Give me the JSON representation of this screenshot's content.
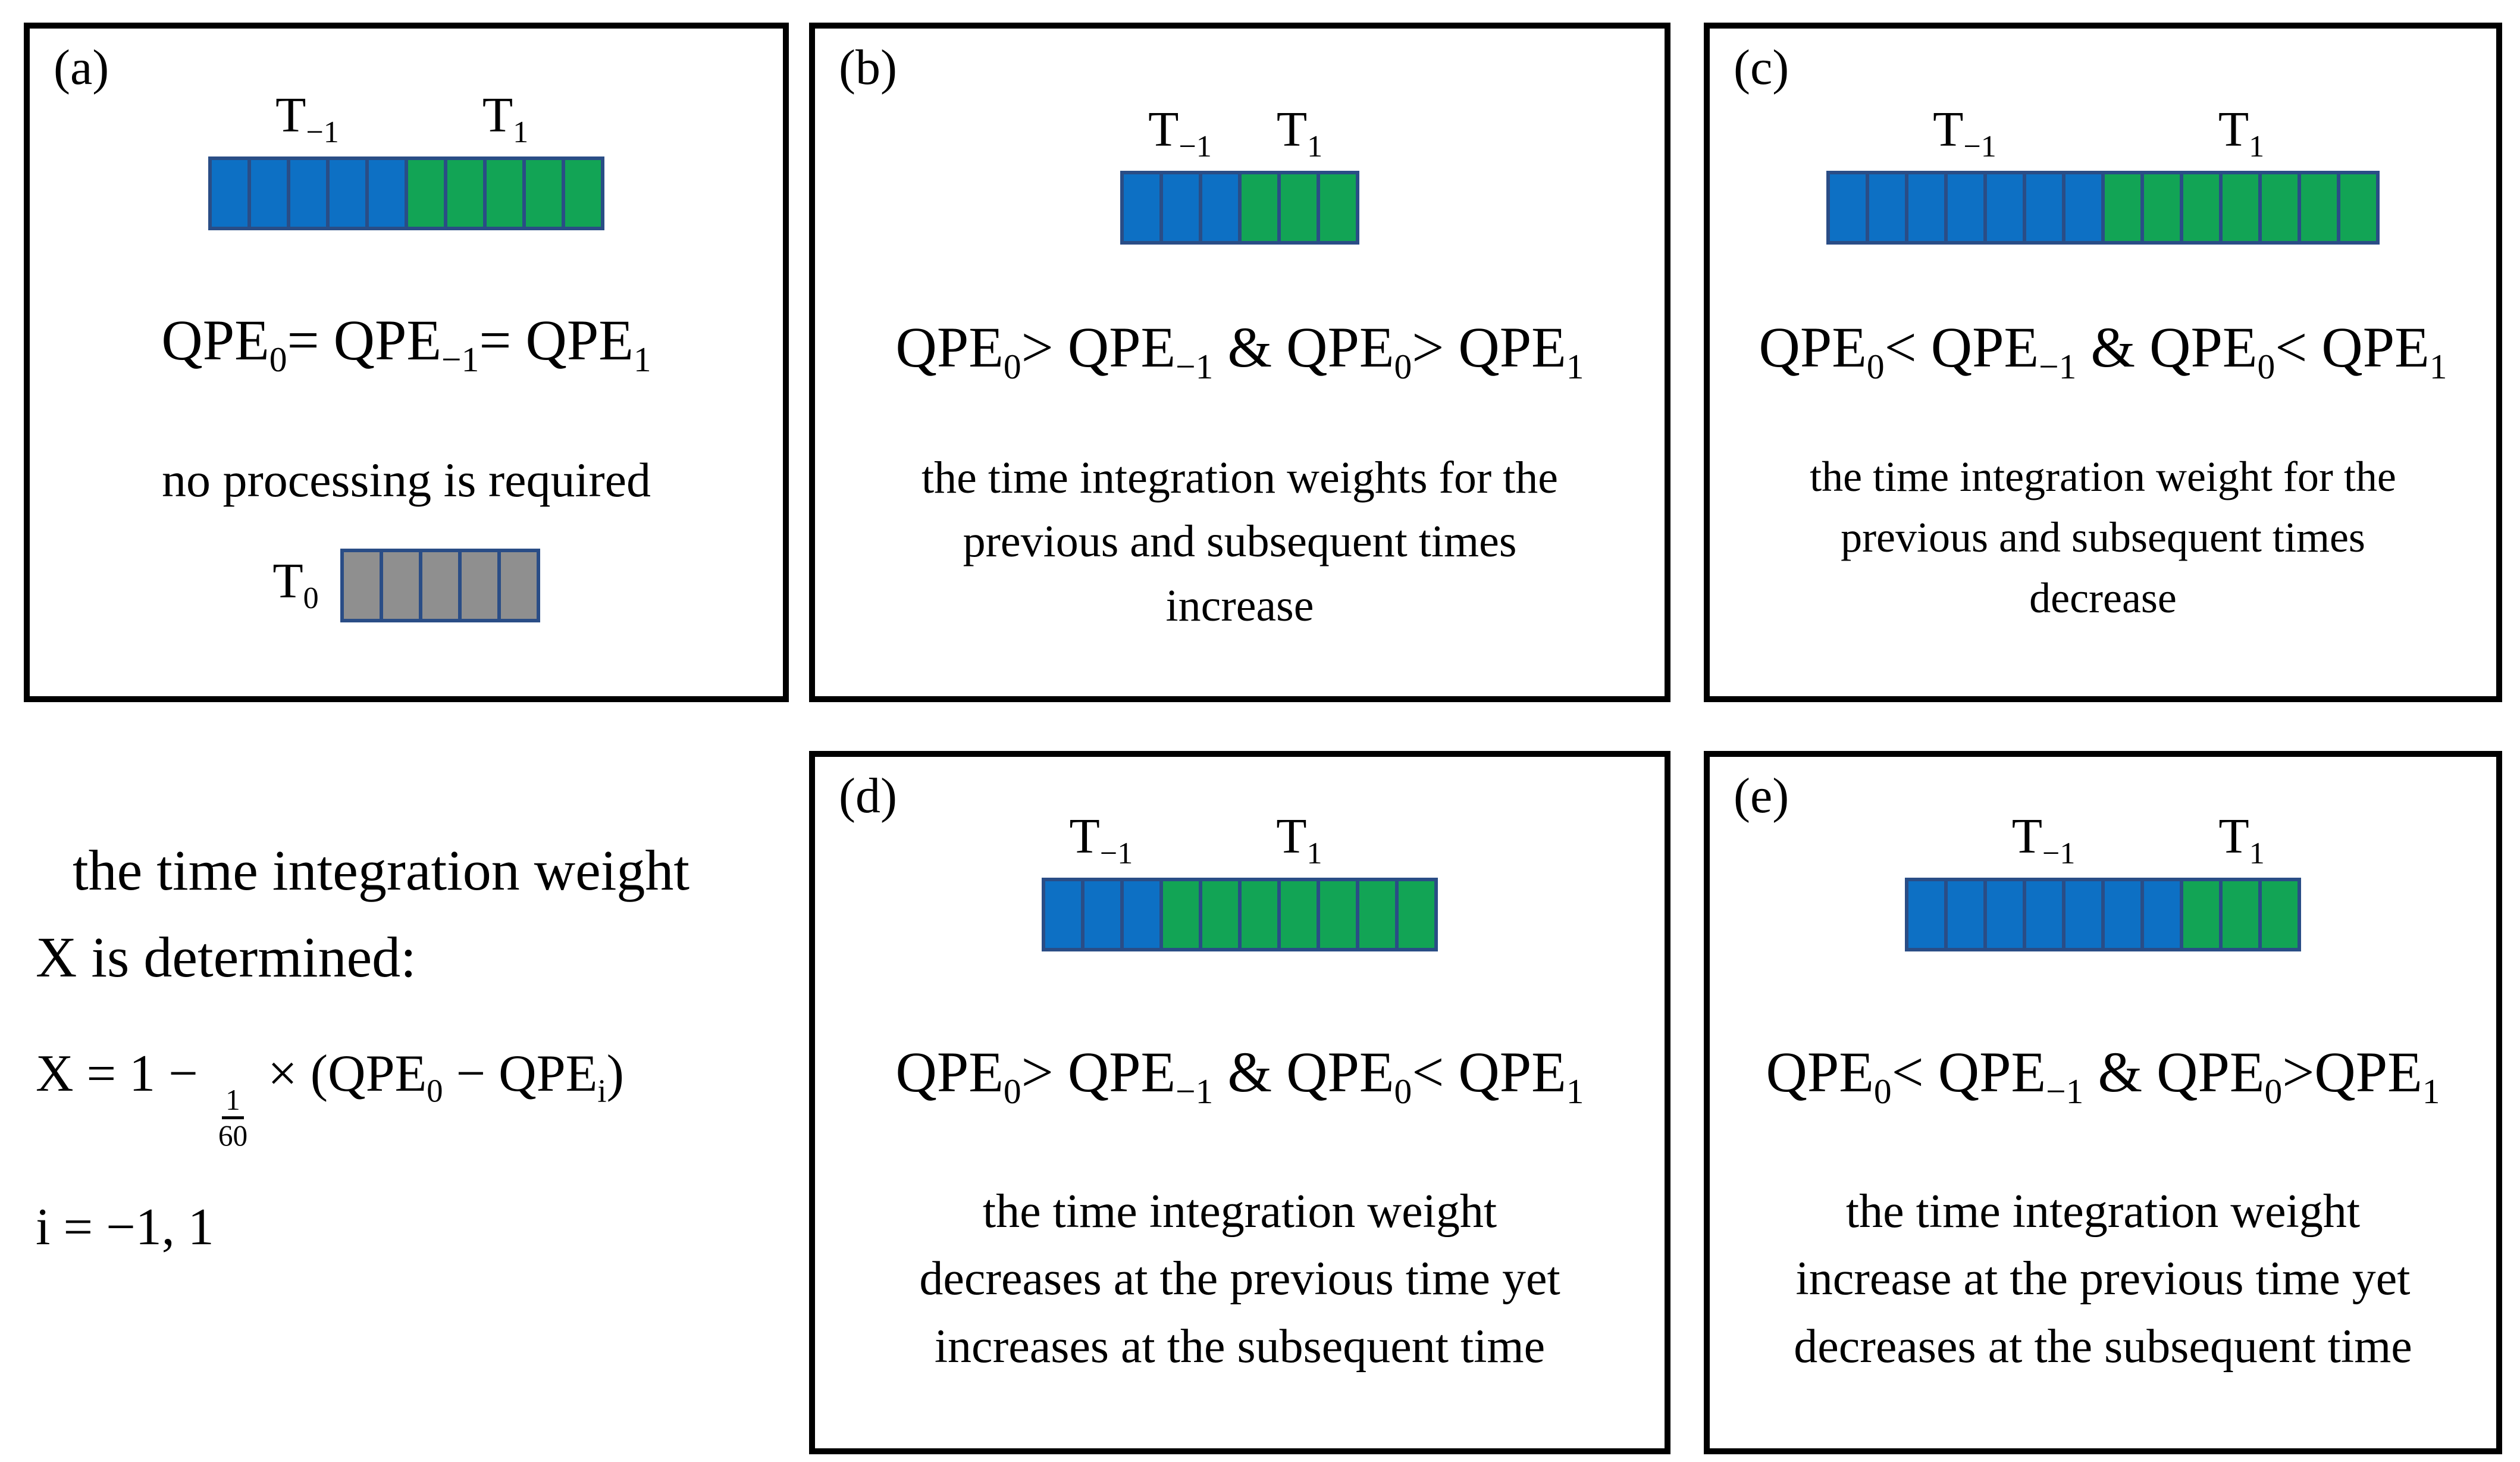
{
  "colors": {
    "background": "#ffffff",
    "text": "#000000",
    "panel_border": "#000000",
    "cell_border": "#2a4d86",
    "bar_blue": "#0d70c4",
    "bar_green": "#12a455",
    "bar_gray": "#8f8f8f"
  },
  "panels": {
    "a": {
      "label": "(a)",
      "t_minus1": {
        "base": "T",
        "sub": "−1"
      },
      "t_plus1": {
        "base": "T",
        "sub": "1"
      },
      "bar": {
        "segments": [
          {
            "color": "blue",
            "cells": 5
          },
          {
            "color": "green",
            "cells": 5
          }
        ]
      },
      "qpe_line": [
        {
          "t": "QPE"
        },
        {
          "sub": "0"
        },
        {
          "t": "= QPE"
        },
        {
          "sub": "−1"
        },
        {
          "t": "= QPE"
        },
        {
          "sub": "1"
        }
      ],
      "note": "no processing is required",
      "t0": {
        "base": "T",
        "sub": "0"
      },
      "t0_bar": {
        "segments": [
          {
            "color": "gray",
            "cells": 5
          }
        ]
      }
    },
    "b": {
      "label": "(b)",
      "t_minus1": {
        "base": "T",
        "sub": "−1"
      },
      "t_plus1": {
        "base": "T",
        "sub": "1"
      },
      "bar": {
        "segments": [
          {
            "color": "blue",
            "cells": 3
          },
          {
            "color": "green",
            "cells": 3
          }
        ]
      },
      "qpe_line": [
        {
          "t": "QPE"
        },
        {
          "sub": "0"
        },
        {
          "t": "> QPE"
        },
        {
          "sub": "−1"
        },
        {
          "t": " & QPE"
        },
        {
          "sub": "0"
        },
        {
          "t": "> QPE"
        },
        {
          "sub": "1"
        }
      ],
      "desc_lines": [
        "the time integration weights for the",
        "previous and subsequent times",
        "increase"
      ]
    },
    "c": {
      "label": "(c)",
      "t_minus1": {
        "base": "T",
        "sub": "−1"
      },
      "t_plus1": {
        "base": "T",
        "sub": "1"
      },
      "bar": {
        "segments": [
          {
            "color": "blue",
            "cells": 7
          },
          {
            "color": "green",
            "cells": 7
          }
        ]
      },
      "qpe_line": [
        {
          "t": "QPE"
        },
        {
          "sub": "0"
        },
        {
          "t": "< QPE"
        },
        {
          "sub": "−1"
        },
        {
          "t": " & QPE"
        },
        {
          "sub": "0"
        },
        {
          "t": "< QPE"
        },
        {
          "sub": "1"
        }
      ],
      "desc_lines": [
        "the time integration weight for the",
        "previous and subsequent times",
        "decrease"
      ]
    },
    "d": {
      "label": "(d)",
      "t_minus1": {
        "base": "T",
        "sub": "−1"
      },
      "t_plus1": {
        "base": "T",
        "sub": "1"
      },
      "bar": {
        "segments": [
          {
            "color": "blue",
            "cells": 3
          },
          {
            "color": "green",
            "cells": 7
          }
        ]
      },
      "qpe_line": [
        {
          "t": "QPE"
        },
        {
          "sub": "0"
        },
        {
          "t": "> QPE"
        },
        {
          "sub": "−1"
        },
        {
          "t": " & QPE"
        },
        {
          "sub": "0"
        },
        {
          "t": "< QPE"
        },
        {
          "sub": "1"
        }
      ],
      "desc_lines": [
        "the time integration weight",
        "decreases at the previous time yet",
        "increases at the subsequent time"
      ]
    },
    "e": {
      "label": "(e)",
      "t_minus1": {
        "base": "T",
        "sub": "−1"
      },
      "t_plus1": {
        "base": "T",
        "sub": "1"
      },
      "bar": {
        "segments": [
          {
            "color": "blue",
            "cells": 7
          },
          {
            "color": "green",
            "cells": 3
          }
        ]
      },
      "qpe_line": [
        {
          "t": "QPE"
        },
        {
          "sub": "0"
        },
        {
          "t": "< QPE"
        },
        {
          "sub": "−1"
        },
        {
          "t": " & QPE"
        },
        {
          "sub": "0"
        },
        {
          "t": ">QPE"
        },
        {
          "sub": "1"
        }
      ],
      "desc_lines": [
        "the time integration weight",
        "increase at the previous time yet",
        "decreases at the subsequent time"
      ]
    }
  },
  "formula_block": {
    "line1": "the time integration weight",
    "line2": "X is determined:",
    "equation": [
      {
        "t": "X = 1 − "
      },
      {
        "frac": {
          "num": "1",
          "den": "60"
        }
      },
      {
        "t": " × (QPE"
      },
      {
        "sub": "0"
      },
      {
        "t": " − QPE"
      },
      {
        "sub": "i"
      },
      {
        "t": ")"
      }
    ],
    "i_line": [
      {
        "t": "i = −1, 1"
      }
    ]
  }
}
